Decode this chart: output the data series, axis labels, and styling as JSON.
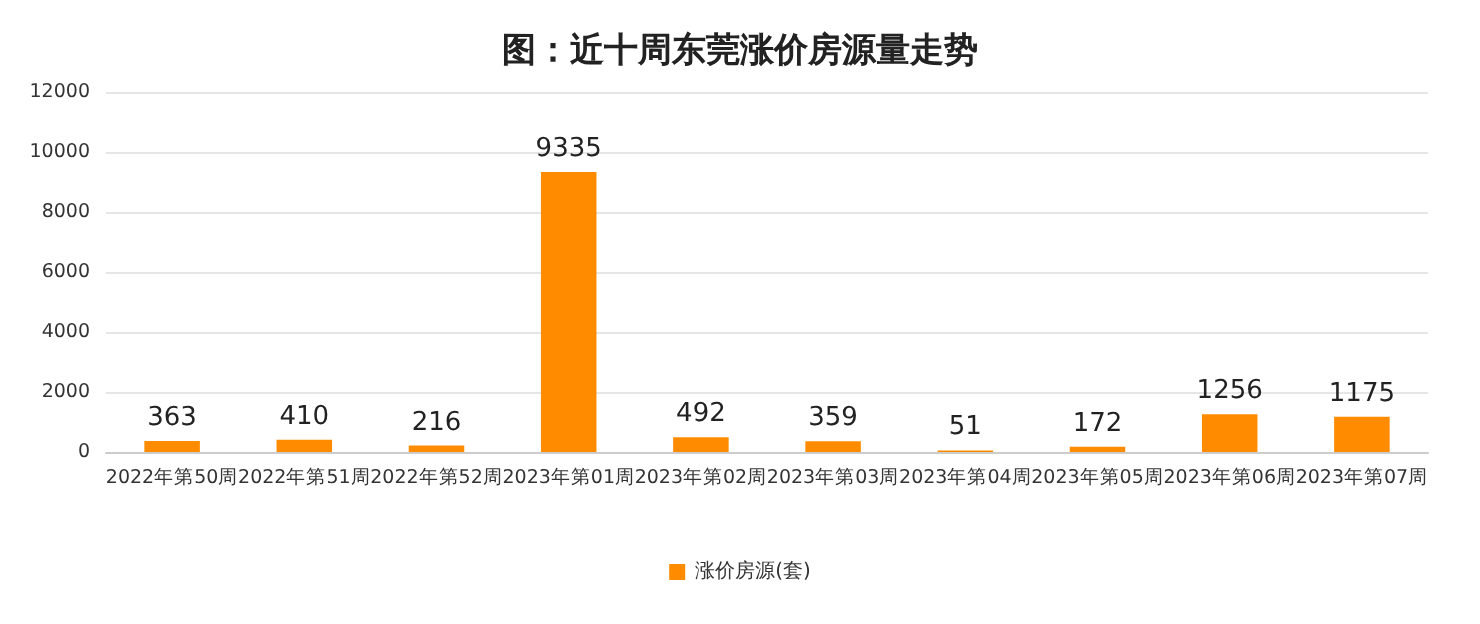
{
  "chart_data": {
    "type": "bar",
    "title": "图：近十周东莞涨价房源量走势",
    "categories": [
      "2022年第50周",
      "2022年第51周",
      "2022年第52周",
      "2023年第01周",
      "2023年第02周",
      "2023年第03周",
      "2023年第04周",
      "2023年第05周",
      "2023年第06周",
      "2023年第07周"
    ],
    "series": [
      {
        "name": "涨价房源(套)",
        "color": "#ff8c00",
        "values": [
          363,
          410,
          216,
          9335,
          492,
          359,
          51,
          172,
          1256,
          1175
        ]
      }
    ],
    "ylim": [
      0,
      12000
    ],
    "yticks": [
      0,
      2000,
      4000,
      6000,
      8000,
      10000,
      12000
    ],
    "grid": "y",
    "legend": "bottom",
    "data_labels": true
  }
}
